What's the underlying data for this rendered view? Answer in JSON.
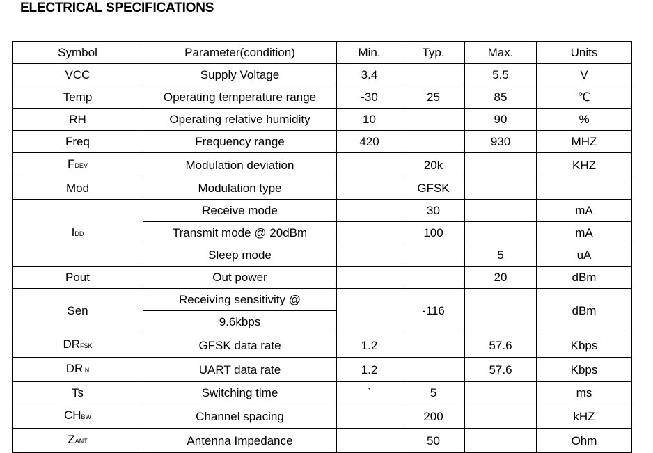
{
  "title": "ELECTRICAL SPECIFICATIONS",
  "headers": {
    "symbol": "Symbol",
    "parameter": "Parameter(condition)",
    "min": "Min.",
    "typ": "Typ.",
    "max": "Max.",
    "units": "Units"
  },
  "rows": [
    {
      "symbol": "VCC",
      "parameter": "Supply Voltage",
      "min": "3.4",
      "typ": "",
      "max": "5.5",
      "units": "V"
    },
    {
      "symbol": "Temp",
      "parameter": "Operating temperature range",
      "min": "-30",
      "typ": "25",
      "max": "85",
      "units": "℃"
    },
    {
      "symbol": "RH",
      "parameter": "Operating relative humidity",
      "min": "10",
      "typ": "",
      "max": "90",
      "units": "%"
    },
    {
      "symbol": "Freq",
      "parameter": "Frequency range",
      "min": "420",
      "typ": "",
      "max": "930",
      "units": "MHZ"
    },
    {
      "symbol_main": "F",
      "symbol_sub": "DEV",
      "parameter": "Modulation deviation",
      "min": "",
      "typ": "20k",
      "max": "",
      "units": "KHZ"
    },
    {
      "symbol": "Mod",
      "parameter": "Modulation type",
      "min": "",
      "typ": "GFSK",
      "max": "",
      "units": ""
    },
    {
      "symbol_main": "I",
      "symbol_sub": "DD",
      "parameter": "Receive mode",
      "min": "",
      "typ": "30",
      "max": "",
      "units": "mA"
    },
    {
      "parameter": "Transmit mode @ 20dBm",
      "min": "",
      "typ": "100",
      "max": "",
      "units": "mA"
    },
    {
      "parameter": "Sleep mode",
      "min": "",
      "typ": "",
      "max": "5",
      "units": "uA"
    },
    {
      "symbol": "Pout",
      "parameter": "Out power",
      "min": "",
      "typ": "",
      "max": "20",
      "units": "dBm"
    },
    {
      "symbol": "Sen",
      "parameter_line1": "Receiving sensitivity @",
      "parameter_line2": "9.6kbps",
      "min": "",
      "typ": "-116",
      "max": "",
      "units": "dBm"
    },
    {
      "symbol_main": "DR",
      "symbol_sub": "FSK",
      "parameter": "GFSK data rate",
      "min": "1.2",
      "typ": "",
      "max": "57.6",
      "units": "Kbps"
    },
    {
      "symbol_main": "DR",
      "symbol_sub": "IN",
      "parameter": "UART data rate",
      "min": "1.2",
      "typ": "",
      "max": "57.6",
      "units": "Kbps"
    },
    {
      "symbol": "Ts",
      "parameter": "Switching time",
      "min": "`",
      "typ": "5",
      "max": "",
      "units": "ms"
    },
    {
      "symbol_main": "CH",
      "symbol_sub": "BW",
      "parameter": "Channel spacing",
      "min": "",
      "typ": "200",
      "max": "",
      "units": "kHZ"
    },
    {
      "symbol_main": "Z",
      "symbol_sub": "ANT",
      "parameter": "Antenna Impedance",
      "min": "",
      "typ": "50",
      "max": "",
      "units": "Ohm"
    }
  ]
}
